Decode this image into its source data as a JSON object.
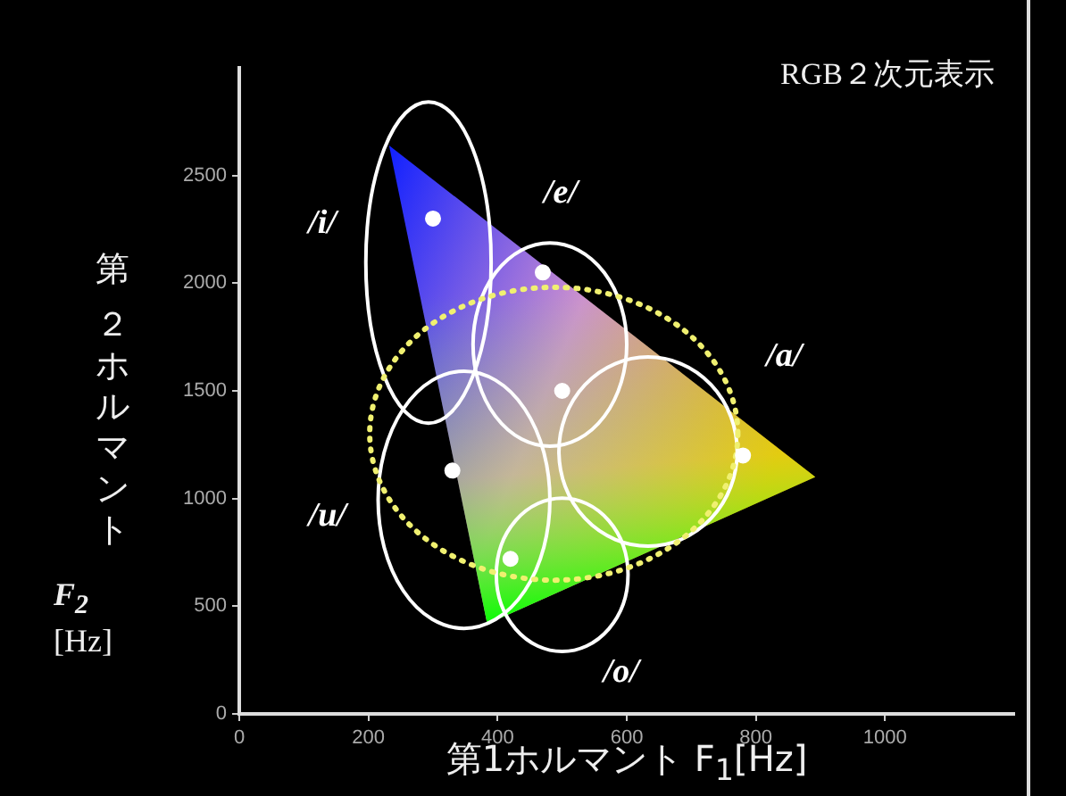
{
  "chart_data": {
    "type": "scatter",
    "title": "RGB２次元表示",
    "xlabel": "第1ホルマント F$_{1}$[Hz]",
    "ylabel": "第２ホルマント F$_{2}$ [Hz]",
    "x": [
      300,
      470,
      780,
      330,
      420,
      500
    ],
    "series": [
      {
        "color": "#ffffff",
        "values": [
          2300,
          2050,
          1200,
          1130,
          720,
          1500
        ]
      }
    ],
    "xlim": [
      0,
      1200
    ],
    "xticks": [
      0,
      200,
      400,
      600,
      800,
      1000
    ],
    "ylim": [
      0,
      3000
    ],
    "yticks": [
      0,
      500,
      1000,
      1500,
      2000,
      2500
    ],
    "annotations": [
      "/i/",
      "/e/",
      "/a/",
      "/u/",
      "/o/"
    ],
    "grid": false,
    "legend": false,
    "marker": "circle"
  }
}
